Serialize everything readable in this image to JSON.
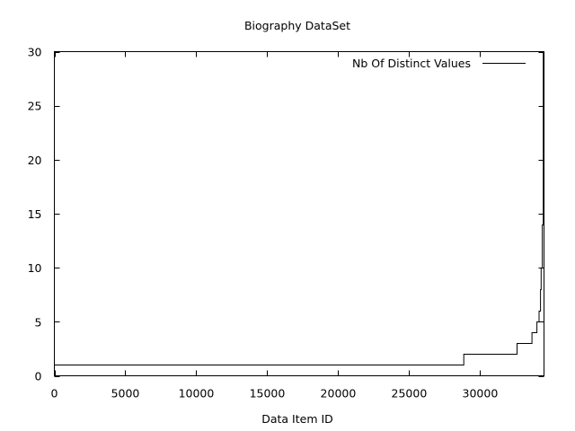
{
  "chart_data": {
    "type": "line",
    "line_style": "step",
    "title": "Biography DataSet",
    "xlabel": "Data Item ID",
    "ylabel": "",
    "xlim": [
      0,
      34500
    ],
    "ylim": [
      0,
      30
    ],
    "x_ticks": [
      0,
      5000,
      10000,
      15000,
      20000,
      25000,
      30000
    ],
    "y_ticks": [
      0,
      5,
      10,
      15,
      20,
      25,
      30
    ],
    "grid": false,
    "legend_position": "top-right",
    "series": [
      {
        "name": "Nb Of Distinct Values",
        "color": "#000000",
        "points": [
          [
            0,
            1
          ],
          [
            28850,
            1
          ],
          [
            28850,
            2
          ],
          [
            32600,
            2
          ],
          [
            32600,
            3
          ],
          [
            33650,
            3
          ],
          [
            33650,
            4
          ],
          [
            34000,
            4
          ],
          [
            34000,
            5
          ],
          [
            34150,
            5
          ],
          [
            34150,
            6
          ],
          [
            34250,
            6
          ],
          [
            34250,
            8
          ],
          [
            34300,
            8
          ],
          [
            34300,
            10
          ],
          [
            34380,
            10
          ],
          [
            34380,
            14
          ],
          [
            34450,
            14
          ],
          [
            34450,
            30
          ]
        ]
      }
    ]
  }
}
